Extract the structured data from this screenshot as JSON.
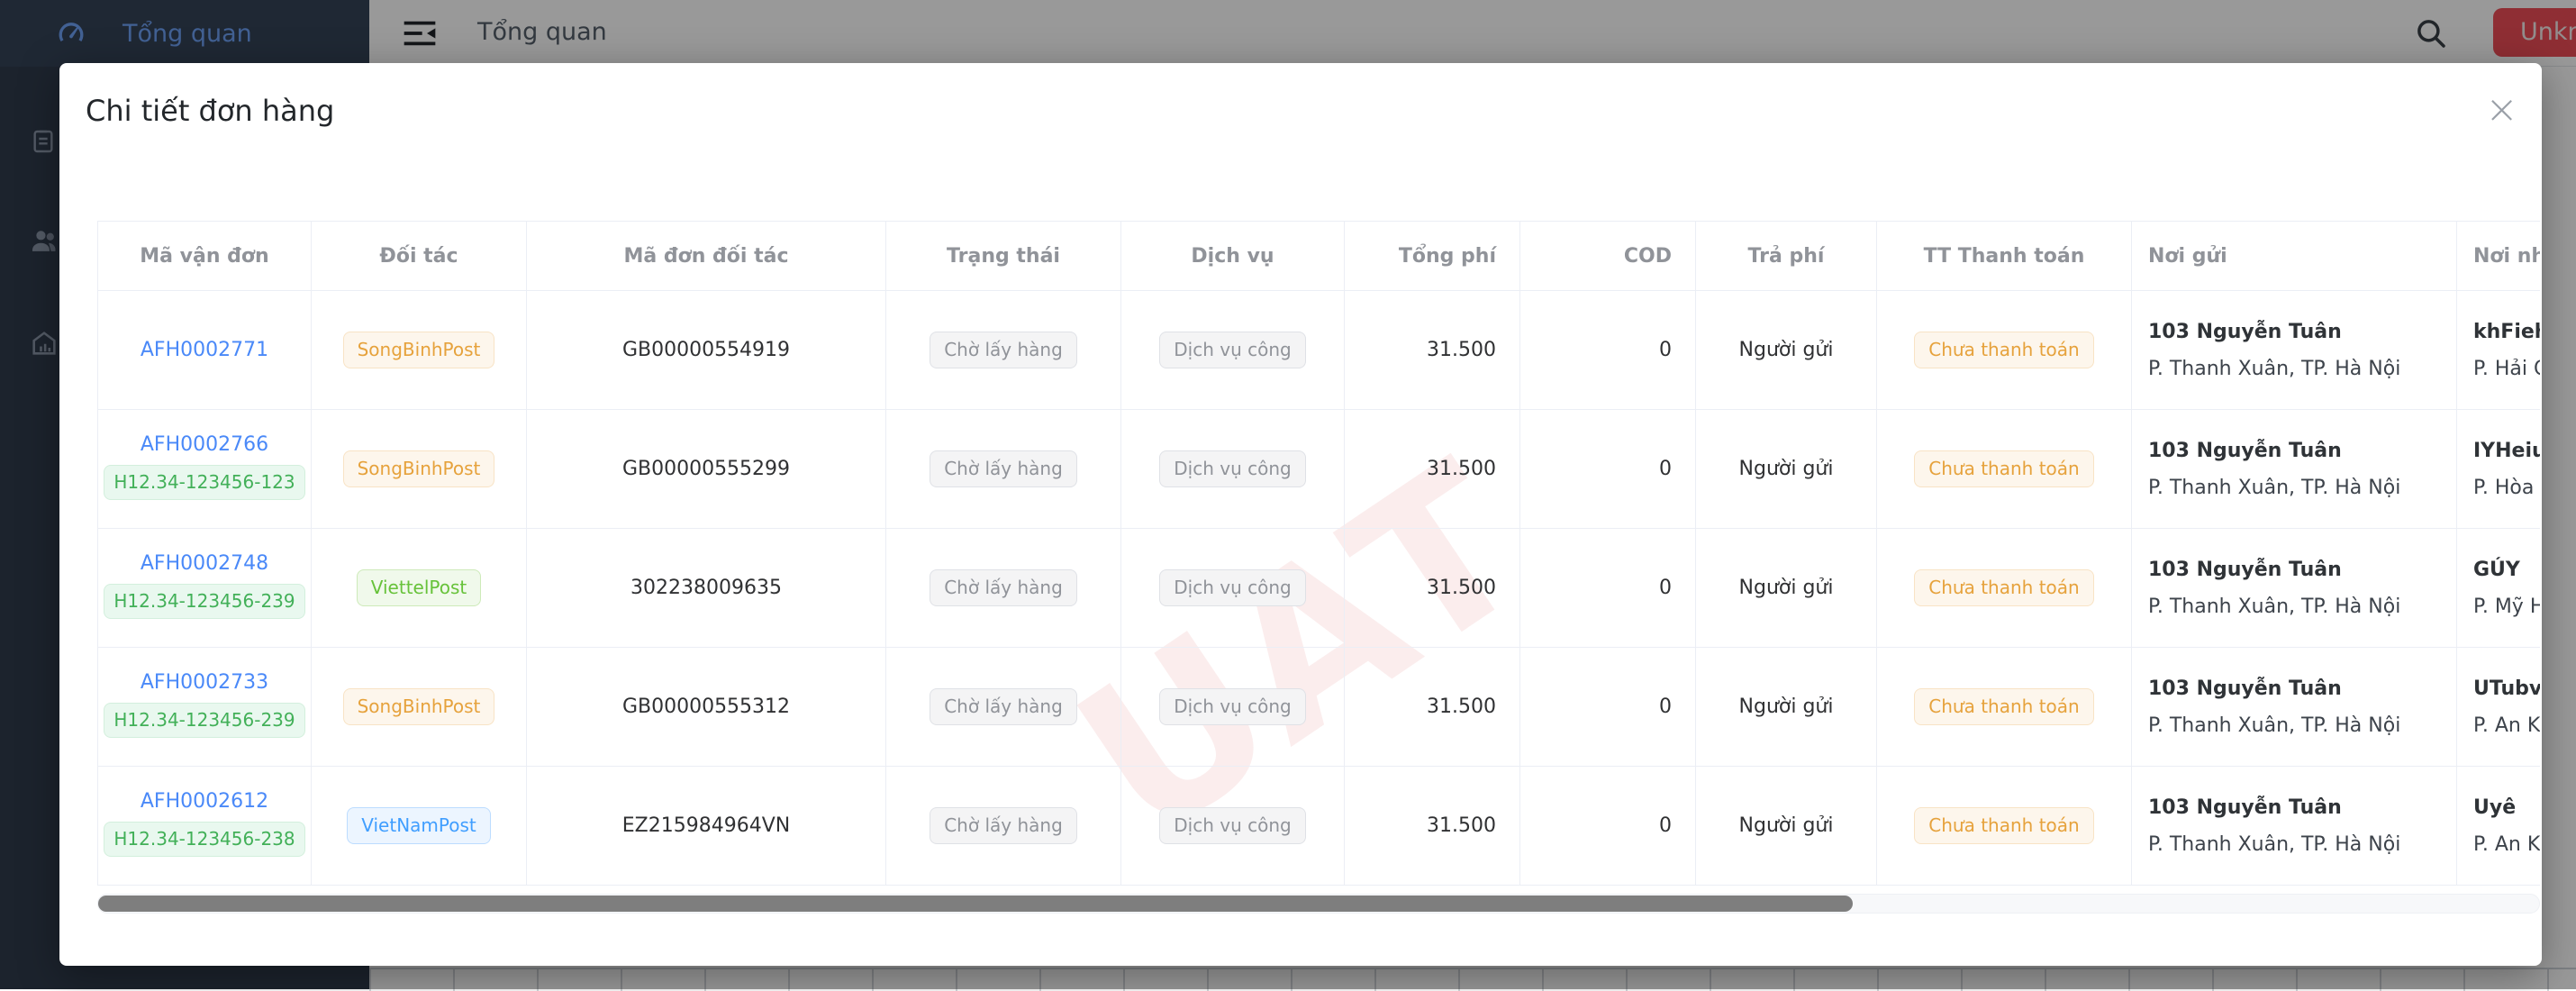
{
  "app": {
    "sidebar": {
      "active_label": "Tổng quan",
      "icons": [
        "dashboard-icon",
        "orders-clipboard-icon",
        "customers-icon",
        "warehouse-icon"
      ]
    },
    "topbar": {
      "title": "Tổng quan",
      "menu_icon": "sidebar-collapse-icon",
      "search_icon": "search-icon",
      "action_button_label": "Unknown"
    }
  },
  "modal": {
    "title": "Chi tiết đơn hàng",
    "close_glyph": "×",
    "watermark": "UAT",
    "columns": [
      "Mã vận đơn",
      "Đối tác",
      "Mã đơn đối tác",
      "Trạng thái",
      "Dịch vụ",
      "Tổng phí",
      "COD",
      "Trả phí",
      "TT Thanh toán",
      "Nơi gửi",
      "Nơi nhận"
    ],
    "rows": [
      {
        "code": "AFH0002771",
        "tag": null,
        "partner": "SongBinhPost",
        "partner_type": "warning",
        "partner_code": "GB00000554919",
        "status": "Chờ lấy hàng",
        "service": "Dịch vụ công",
        "total_fee": "31.500",
        "cod": "0",
        "payer": "Người gửi",
        "payment_status": "Chưa thanh toán",
        "sender_name": "103 Nguyễn Tuân",
        "sender_addr": "P. Thanh Xuân, TP. Hà Nội",
        "receiver_name": "khFieh",
        "receiver_addr": "P. Hải C"
      },
      {
        "code": "AFH0002766",
        "tag": "H12.34-123456-123",
        "partner": "SongBinhPost",
        "partner_type": "warning",
        "partner_code": "GB00000555299",
        "status": "Chờ lấy hàng",
        "service": "Dịch vụ công",
        "total_fee": "31.500",
        "cod": "0",
        "payer": "Người gửi",
        "payment_status": "Chưa thanh toán",
        "sender_name": "103 Nguyễn Tuân",
        "sender_addr": "P. Thanh Xuân, TP. Hà Nội",
        "receiver_name": "IYHeiu",
        "receiver_addr": "P. Hòa"
      },
      {
        "code": "AFH0002748",
        "tag": "H12.34-123456-239",
        "partner": "ViettelPost",
        "partner_type": "success",
        "partner_code": "302238009635",
        "status": "Chờ lấy hàng",
        "service": "Dịch vụ công",
        "total_fee": "31.500",
        "cod": "0",
        "payer": "Người gửi",
        "payment_status": "Chưa thanh toán",
        "sender_name": "103 Nguyễn Tuân",
        "sender_addr": "P. Thanh Xuân, TP. Hà Nội",
        "receiver_name": "GÚY",
        "receiver_addr": "P. Mỹ H"
      },
      {
        "code": "AFH0002733",
        "tag": "H12.34-123456-239",
        "partner": "SongBinhPost",
        "partner_type": "warning",
        "partner_code": "GB00000555312",
        "status": "Chờ lấy hàng",
        "service": "Dịch vụ công",
        "total_fee": "31.500",
        "cod": "0",
        "payer": "Người gửi",
        "payment_status": "Chưa thanh toán",
        "sender_name": "103 Nguyễn Tuân",
        "sender_addr": "P. Thanh Xuân, TP. Hà Nội",
        "receiver_name": "UTubv",
        "receiver_addr": "P. An K"
      },
      {
        "code": "AFH0002612",
        "tag": "H12.34-123456-238",
        "partner": "VietNamPost",
        "partner_type": "primary",
        "partner_code": "EZ215984964VN",
        "status": "Chờ lấy hàng",
        "service": "Dịch vụ công",
        "total_fee": "31.500",
        "cod": "0",
        "payer": "Người gửi",
        "payment_status": "Chưa thanh toán",
        "sender_name": "103 Nguyễn Tuân",
        "sender_addr": "P. Thanh Xuân, TP. Hà Nội",
        "receiver_name": "Uyê",
        "receiver_addr": "P. An K"
      }
    ],
    "badge_colors": {
      "warning": {
        "text": "#e6a23c",
        "bg": "#fdf6ec",
        "border": "#f8e3c5"
      },
      "success": {
        "text": "#67c23a",
        "bg": "#f0f9eb",
        "border": "#cdeab9"
      },
      "primary": {
        "text": "#409eff",
        "bg": "#ecf5ff",
        "border": "#bcdcff"
      },
      "info": {
        "text": "#909399",
        "bg": "#f4f4f5",
        "border": "#dfe1e6"
      },
      "tag": {
        "text": "#42b058",
        "bg": "#e9f8ef",
        "border": "#d3efdd"
      }
    }
  }
}
